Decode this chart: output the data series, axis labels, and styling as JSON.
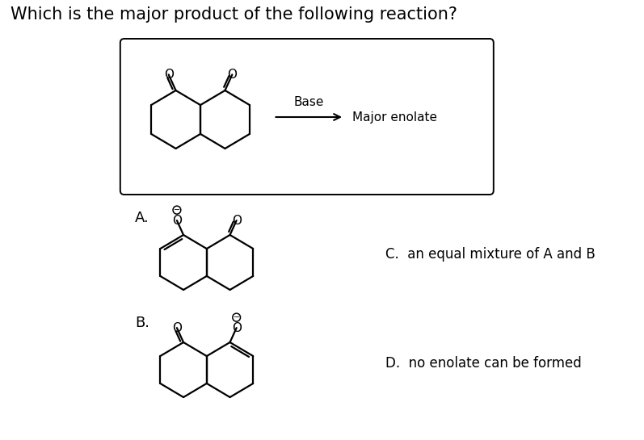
{
  "title": "Which is the major product of the following reaction?",
  "title_fontsize": 15,
  "background_color": "#ffffff",
  "text_color": "#000000",
  "answer_C": "C.  an equal mixture of A and B",
  "answer_D": "D.  no enolate can be formed",
  "label_A": "A.",
  "label_B": "B.",
  "arrow_label": "Base",
  "arrow_target": "Major enolate"
}
